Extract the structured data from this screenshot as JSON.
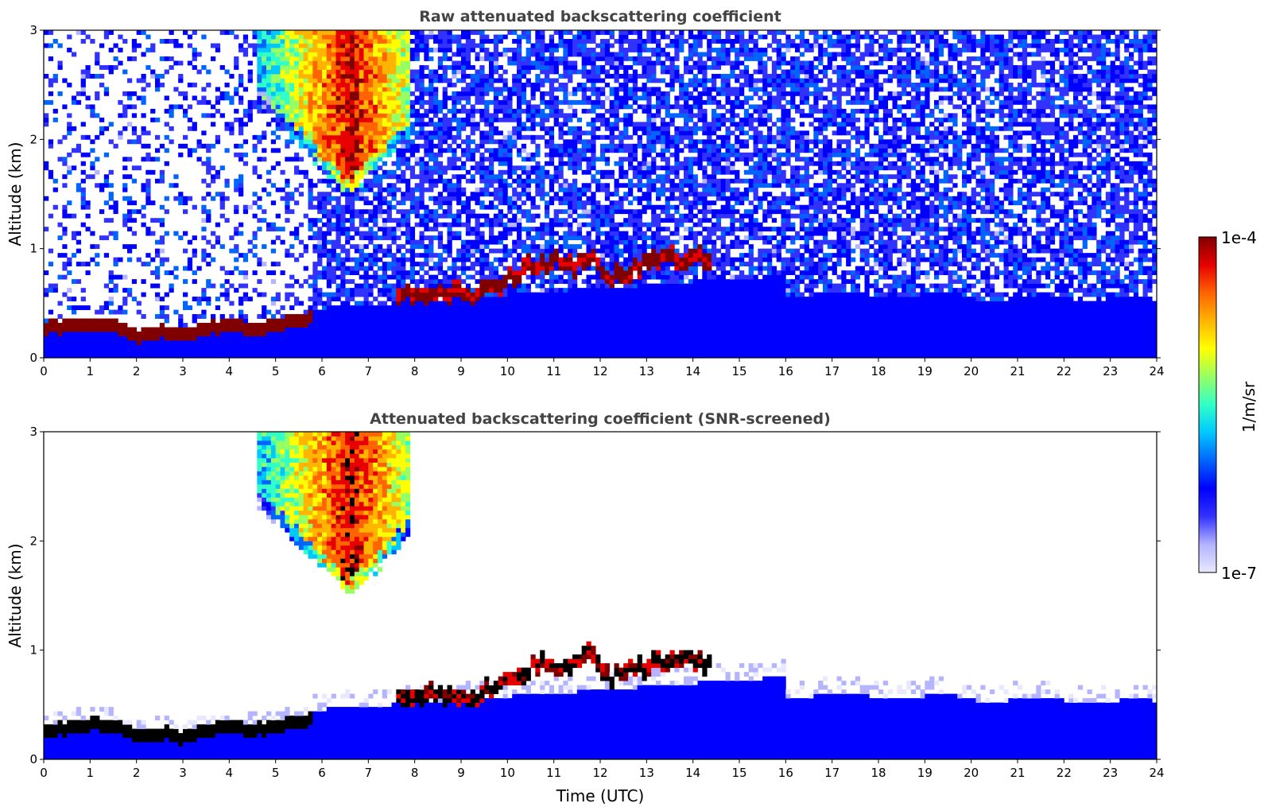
{
  "chart_data": [
    {
      "type": "heatmap",
      "title": "Raw attenuated backscattering coefficient",
      "xlabel": "",
      "ylabel": "Altitude (km)",
      "xlim": [
        0,
        24
      ],
      "ylim": [
        0,
        3
      ],
      "x_ticks": [
        "0",
        "1",
        "2",
        "3",
        "4",
        "5",
        "6",
        "7",
        "8",
        "9",
        "10",
        "11",
        "12",
        "13",
        "14",
        "15",
        "16",
        "17",
        "18",
        "19",
        "20",
        "21",
        "22",
        "23",
        "24"
      ],
      "y_ticks": [
        "0",
        "1",
        "2",
        "3"
      ],
      "grid": false,
      "features": [
        {
          "kind": "boundary_layer_top",
          "points": [
            [
              0,
              0.33
            ],
            [
              0.5,
              0.35
            ],
            [
              1,
              0.38
            ],
            [
              1.5,
              0.36
            ],
            [
              2,
              0.27
            ],
            [
              2.5,
              0.3
            ],
            [
              3,
              0.26
            ],
            [
              3.5,
              0.32
            ],
            [
              4,
              0.36
            ],
            [
              4.5,
              0.32
            ],
            [
              5,
              0.36
            ],
            [
              5.8,
              0.42
            ]
          ]
        },
        {
          "kind": "aerosol_layer",
          "points": [
            [
              7.6,
              0.6
            ],
            [
              8,
              0.68
            ],
            [
              8.5,
              0.66
            ],
            [
              9,
              0.65
            ],
            [
              9.5,
              0.68
            ],
            [
              10,
              0.8
            ],
            [
              10.5,
              0.92
            ],
            [
              11,
              0.95
            ],
            [
              11.5,
              0.9
            ],
            [
              11.8,
              1.05
            ],
            [
              12.2,
              0.82
            ],
            [
              12.8,
              0.9
            ],
            [
              13.3,
              0.95
            ],
            [
              13.8,
              0.98
            ],
            [
              14.4,
              0.96
            ]
          ]
        },
        {
          "kind": "cloud",
          "x_range": [
            4.6,
            7.9
          ],
          "base_km": 1.5,
          "top_km": 3.0,
          "peak_x": 6.6
        }
      ]
    },
    {
      "type": "heatmap",
      "title": "Attenuated backscattering coefficient (SNR-screened)",
      "xlabel": "Time (UTC)",
      "ylabel": "Altitude (km)",
      "xlim": [
        0,
        24
      ],
      "ylim": [
        0,
        3
      ],
      "x_ticks": [
        "0",
        "1",
        "2",
        "3",
        "4",
        "5",
        "6",
        "7",
        "8",
        "9",
        "10",
        "11",
        "12",
        "13",
        "14",
        "15",
        "16",
        "17",
        "18",
        "19",
        "20",
        "21",
        "22",
        "23",
        "24"
      ],
      "y_ticks": [
        "0",
        "1",
        "2",
        "3"
      ],
      "grid": false,
      "features": [
        {
          "kind": "boundary_layer_top",
          "points": [
            [
              0,
              0.33
            ],
            [
              0.5,
              0.35
            ],
            [
              1,
              0.38
            ],
            [
              1.5,
              0.36
            ],
            [
              2,
              0.27
            ],
            [
              2.5,
              0.3
            ],
            [
              3,
              0.26
            ],
            [
              3.5,
              0.32
            ],
            [
              4,
              0.36
            ],
            [
              4.5,
              0.32
            ],
            [
              5,
              0.36
            ],
            [
              5.8,
              0.42
            ]
          ]
        },
        {
          "kind": "aerosol_layer",
          "points": [
            [
              7.6,
              0.6
            ],
            [
              8,
              0.68
            ],
            [
              8.5,
              0.66
            ],
            [
              9,
              0.65
            ],
            [
              9.5,
              0.68
            ],
            [
              10,
              0.8
            ],
            [
              10.5,
              0.92
            ],
            [
              11,
              0.95
            ],
            [
              11.5,
              0.9
            ],
            [
              11.8,
              1.05
            ],
            [
              12.2,
              0.82
            ],
            [
              12.8,
              0.9
            ],
            [
              13.3,
              0.95
            ],
            [
              13.8,
              0.98
            ],
            [
              14.4,
              0.96
            ]
          ]
        },
        {
          "kind": "cloud",
          "x_range": [
            4.6,
            7.9
          ],
          "base_km": 1.5,
          "top_km": 3.0,
          "peak_x": 6.6
        }
      ]
    }
  ],
  "colorbar": {
    "label": "1/m/sr",
    "min_label": "1e-7",
    "max_label": "1e-4",
    "scale": "log",
    "colormap": "jet",
    "colors": [
      "#e8e8ff",
      "#b4b4ff",
      "#3232ff",
      "#0000ff",
      "#0064ff",
      "#00c8ff",
      "#32ffc8",
      "#96ff64",
      "#ffff00",
      "#ffb400",
      "#ff6400",
      "#e60000",
      "#800000"
    ]
  }
}
